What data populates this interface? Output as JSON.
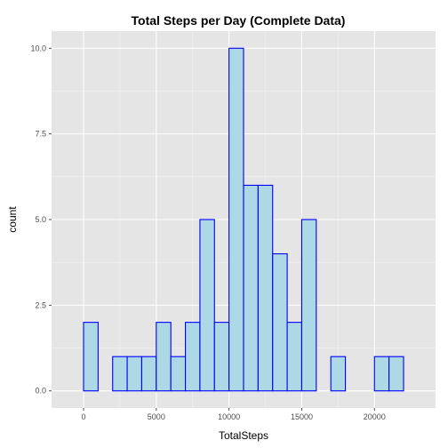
{
  "chart_data": {
    "type": "bar",
    "title": "Total Steps per Day (Complete Data)",
    "xlabel": "TotalSteps",
    "ylabel": "count",
    "bin_width": 1000,
    "bins": [
      {
        "x0": -1000,
        "x1": 0,
        "count": 0
      },
      {
        "x0": 0,
        "x1": 1000,
        "count": 2
      },
      {
        "x0": 1000,
        "x1": 2000,
        "count": 0
      },
      {
        "x0": 2000,
        "x1": 3000,
        "count": 1
      },
      {
        "x0": 3000,
        "x1": 4000,
        "count": 1
      },
      {
        "x0": 4000,
        "x1": 5000,
        "count": 1
      },
      {
        "x0": 5000,
        "x1": 6000,
        "count": 2
      },
      {
        "x0": 6000,
        "x1": 7000,
        "count": 1
      },
      {
        "x0": 7000,
        "x1": 8000,
        "count": 2
      },
      {
        "x0": 8000,
        "x1": 9000,
        "count": 5
      },
      {
        "x0": 9000,
        "x1": 10000,
        "count": 2
      },
      {
        "x0": 10000,
        "x1": 11000,
        "count": 10
      },
      {
        "x0": 11000,
        "x1": 12000,
        "count": 6
      },
      {
        "x0": 12000,
        "x1": 13000,
        "count": 6
      },
      {
        "x0": 13000,
        "x1": 14000,
        "count": 4
      },
      {
        "x0": 14000,
        "x1": 15000,
        "count": 2
      },
      {
        "x0": 15000,
        "x1": 16000,
        "count": 5
      },
      {
        "x0": 16000,
        "x1": 17000,
        "count": 0
      },
      {
        "x0": 17000,
        "x1": 18000,
        "count": 1
      },
      {
        "x0": 18000,
        "x1": 19000,
        "count": 0
      },
      {
        "x0": 19000,
        "x1": 20000,
        "count": 0
      },
      {
        "x0": 20000,
        "x1": 21000,
        "count": 1
      },
      {
        "x0": 21000,
        "x1": 22000,
        "count": 1
      },
      {
        "x0": 22000,
        "x1": 23000,
        "count": 0
      }
    ],
    "xlim": [
      -2200,
      24200
    ],
    "ylim": [
      -0.5,
      10.5
    ],
    "x_ticks": [
      0,
      5000,
      10000,
      15000,
      20000
    ],
    "x_tick_labels": [
      "0",
      "5000",
      "10000",
      "15000",
      "20000"
    ],
    "y_ticks": [
      0,
      2.5,
      5,
      7.5,
      10
    ],
    "y_tick_labels": [
      "0.0",
      "2.5",
      "5.0",
      "7.5",
      "10.0"
    ],
    "grid": true,
    "colors": {
      "bar_fill": "#add8e6",
      "bar_outline": "#0000ff",
      "panel_background": "#e5e5e5",
      "grid_major": "#ffffff",
      "grid_minor": "#f2f2f2"
    }
  }
}
